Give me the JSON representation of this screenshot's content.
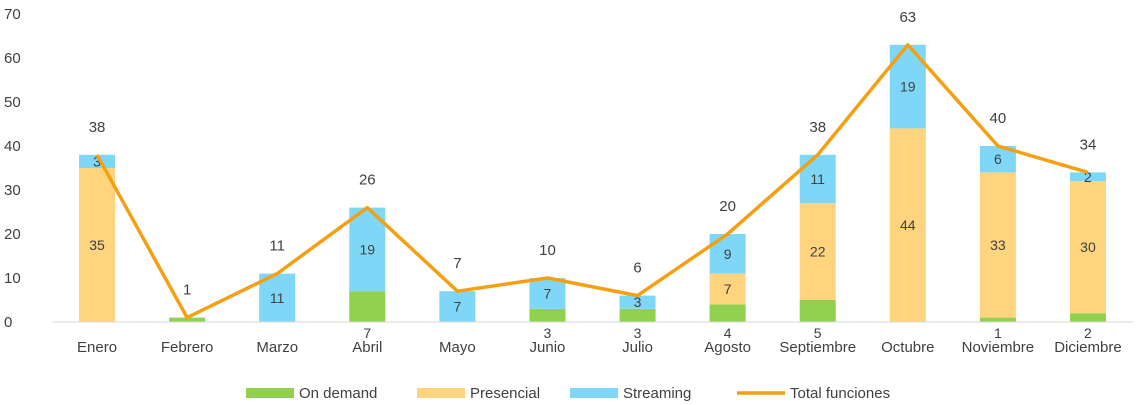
{
  "chart_data": {
    "type": "bar",
    "stacked": true,
    "categories": [
      "Enero",
      "Febrero",
      "Marzo",
      "Abril",
      "Mayo",
      "Junio",
      "Julio",
      "Agosto",
      "Septiembre",
      "Octubre",
      "Noviembre",
      "Diciembre"
    ],
    "series": [
      {
        "name": "On demand",
        "kind": "bar",
        "color": "#92D050",
        "values": [
          0,
          1,
          0,
          7,
          0,
          3,
          3,
          4,
          5,
          0,
          1,
          2
        ],
        "labels": [
          "",
          "",
          "",
          "7",
          "",
          "3",
          "3",
          "4",
          "5",
          "",
          "1",
          "2"
        ]
      },
      {
        "name": "Presencial",
        "kind": "bar",
        "color": "#FFD47F",
        "values": [
          35,
          0,
          0,
          0,
          0,
          0,
          0,
          7,
          22,
          44,
          33,
          30
        ],
        "labels": [
          "35",
          "",
          "",
          "",
          "",
          "",
          "",
          "7",
          "22",
          "44",
          "33",
          "30"
        ]
      },
      {
        "name": "Streaming",
        "kind": "bar",
        "color": "#7FD7F7",
        "values": [
          3,
          0,
          11,
          19,
          7,
          7,
          3,
          9,
          11,
          19,
          6,
          2
        ],
        "labels": [
          "3",
          "",
          "11",
          "19",
          "7",
          "7",
          "3",
          "9",
          "11",
          "19",
          "6",
          "2"
        ]
      },
      {
        "name": "Total funciones",
        "kind": "line",
        "color": "#F5A013",
        "values": [
          38,
          1,
          11,
          26,
          7,
          10,
          6,
          20,
          38,
          63,
          40,
          34
        ],
        "labels": [
          "38",
          "1",
          "11",
          "26",
          "7",
          "10",
          "6",
          "20",
          "38",
          "63",
          "40",
          "34"
        ]
      }
    ],
    "y_ticks": [
      "0",
      "10",
      "20",
      "30",
      "40",
      "50",
      "60",
      "70"
    ],
    "ylim": [
      0,
      70
    ],
    "grid": false,
    "legend_position": "bottom",
    "title": "",
    "xlabel": "",
    "ylabel": ""
  }
}
